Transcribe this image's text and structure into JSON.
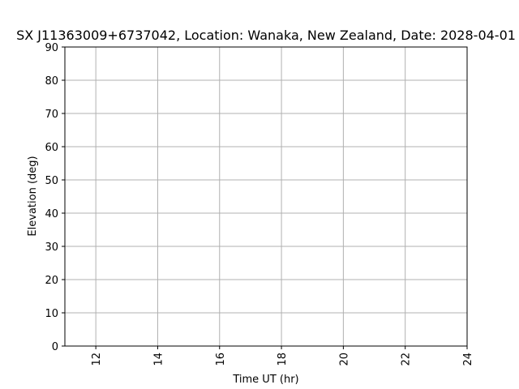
{
  "chart_data": {
    "type": "line",
    "title": "SX J11363009+6737042,  Location: Wanaka, New Zealand, Date: 2028-04-01",
    "xlabel": "Time UT (hr)",
    "ylabel": "Elevation (deg)",
    "xlim": [
      11,
      24
    ],
    "ylim": [
      0,
      90
    ],
    "x_ticks": [
      12,
      14,
      16,
      18,
      20,
      22,
      24
    ],
    "y_ticks": [
      0,
      10,
      20,
      30,
      40,
      50,
      60,
      70,
      80,
      90
    ],
    "grid": true,
    "series": []
  }
}
